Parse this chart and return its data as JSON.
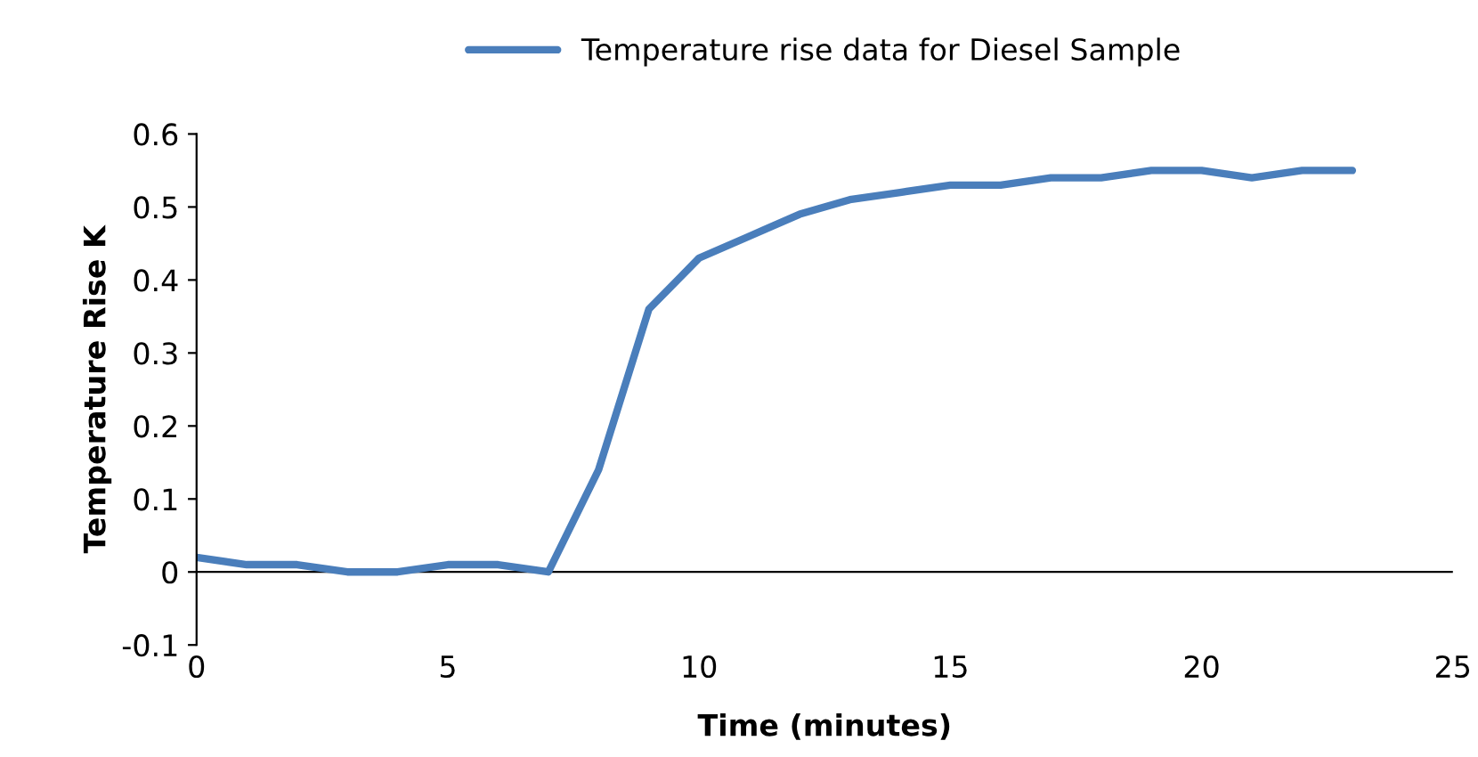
{
  "chart_data": {
    "type": "line",
    "xlabel": "Time (minutes)",
    "ylabel": "Temperature Rise K",
    "x": [
      0,
      1,
      2,
      3,
      4,
      5,
      6,
      7,
      8,
      9,
      10,
      11,
      12,
      13,
      14,
      15,
      16,
      17,
      18,
      19,
      20,
      21,
      22,
      23
    ],
    "series": [
      {
        "name": "Temperature rise data for Diesel Sample",
        "color": "#4a7ebb",
        "values": [
          0.02,
          0.01,
          0.01,
          0.0,
          0.0,
          0.01,
          0.01,
          0.0,
          0.14,
          0.36,
          0.43,
          0.46,
          0.49,
          0.51,
          0.52,
          0.53,
          0.53,
          0.54,
          0.54,
          0.55,
          0.55,
          0.54,
          0.55,
          0.55
        ]
      }
    ],
    "xlim": [
      0,
      25
    ],
    "xticks": [
      0,
      5,
      10,
      15,
      20,
      25
    ],
    "ylim": [
      -0.1,
      0.6
    ],
    "yticks": [
      -0.1,
      0,
      0.1,
      0.2,
      0.3,
      0.4,
      0.5,
      0.6
    ],
    "ref_lines": [
      {
        "axis": "y",
        "value": 0,
        "color": "#000000",
        "line_style": "solid"
      }
    ],
    "grid": false,
    "legend": "top",
    "marker": "none",
    "line_style": "solid"
  }
}
